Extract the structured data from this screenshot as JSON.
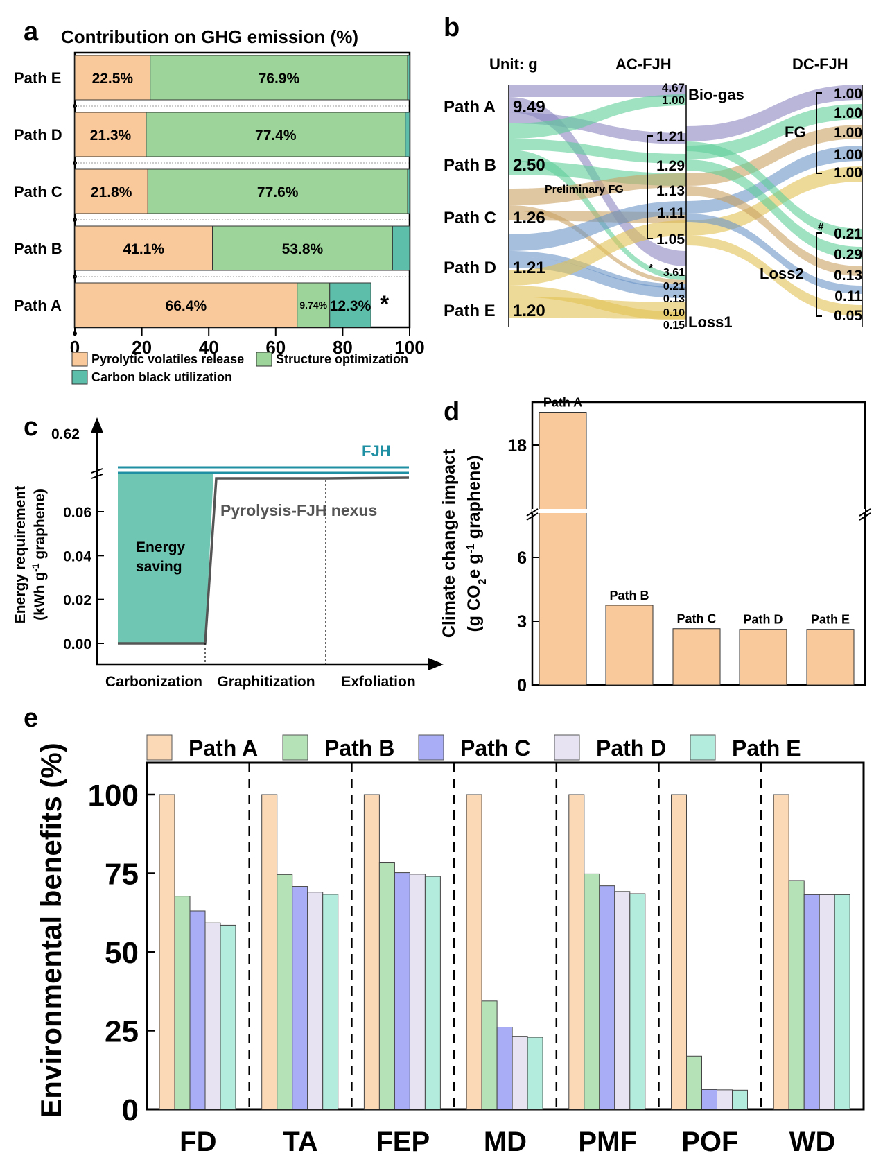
{
  "chart_data": [
    {
      "panel": "a",
      "type": "bar",
      "orientation": "horizontal",
      "stacked": true,
      "title": "Contribution on GHG emission (%)",
      "categories": [
        "Path E",
        "Path D",
        "Path C",
        "Path B",
        "Path A"
      ],
      "series": [
        {
          "name": "Pyrolytic volatiles release",
          "color": "#f9c89b",
          "values": [
            22.5,
            21.3,
            21.8,
            41.1,
            66.4
          ],
          "labels": [
            "22.5%",
            "21.3%",
            "21.8%",
            "41.1%",
            "66.4%"
          ]
        },
        {
          "name": "Structure optimization",
          "color": "#9dd49a",
          "values": [
            76.9,
            77.4,
            77.6,
            53.8,
            9.74
          ],
          "labels": [
            "76.9%",
            "77.4%",
            "77.6%",
            "53.8%",
            "9.74%"
          ]
        },
        {
          "name": "Carbon black utilization",
          "color": "#5dbfaa",
          "values": [
            0.6,
            1.3,
            0.6,
            5.1,
            12.3
          ],
          "labels": [
            "",
            "",
            "",
            "",
            "12.3%"
          ]
        }
      ],
      "xlim": [
        0,
        100
      ],
      "xticks": [
        "0",
        "20",
        "40",
        "60",
        "80",
        "100"
      ],
      "annotation": "*"
    },
    {
      "panel": "b",
      "type": "sankey",
      "unit_label": "Unit: g",
      "columns": [
        "AC-FJH",
        "DC-FJH"
      ],
      "sources": [
        {
          "name": "Path A",
          "value": "9.49",
          "color": "#8b86bf"
        },
        {
          "name": "Path B",
          "value": "2.50",
          "color": "#5fcf99"
        },
        {
          "name": "Path C",
          "value": "1.26",
          "color": "#c9a264"
        },
        {
          "name": "Path D",
          "value": "1.21",
          "color": "#6a95c6"
        },
        {
          "name": "Path E",
          "value": "1.20",
          "color": "#e3c154"
        }
      ],
      "ac_biogas": [
        "4.67",
        "1.00"
      ],
      "ac_fg": [
        "1.21",
        "1.29",
        "1.13",
        "1.11",
        "1.05"
      ],
      "ac_loss": [
        "3.61",
        "0.21",
        "0.13",
        "0.10",
        "0.15"
      ],
      "dc_fg": [
        "1.00",
        "1.00",
        "1.00",
        "1.00",
        "1.00"
      ],
      "dc_loss": [
        "0.21",
        "0.29",
        "0.13",
        "0.11",
        "0.05"
      ],
      "node_labels": {
        "biogas": "Bio-gas",
        "prelim_fg": "Preliminary FG",
        "loss1": "Loss1",
        "fg": "FG",
        "loss2": "Loss2"
      },
      "marks": {
        "star": "*",
        "hash": "#"
      }
    },
    {
      "panel": "c",
      "type": "line",
      "ylabel_lines": [
        "Energy requirement",
        "(kWh g",
        "-1",
        " graphene)"
      ],
      "y_break_label": "0.62",
      "yticks": [
        "0.00",
        "0.02",
        "0.04",
        "0.06"
      ],
      "stages": [
        "Carbonization",
        "Graphitization",
        "Exfoliation"
      ],
      "series": [
        {
          "name": "FJH",
          "color": "#1f8fa3",
          "value": 0.62
        },
        {
          "name": "Pyrolysis-FJH nexus",
          "color": "#555555",
          "values": [
            0.0,
            0.0,
            0.075,
            0.075,
            0.076
          ]
        }
      ],
      "area_label_lines": [
        "Energy",
        "saving"
      ]
    },
    {
      "panel": "d",
      "type": "bar",
      "ylabel_lines": [
        "Climate change impact",
        "(g CO",
        "2",
        "e g",
        "-1",
        " graphene)"
      ],
      "categories": [
        "Path A",
        "Path B",
        "Path C",
        "Path D",
        "Path E"
      ],
      "values": [
        18.6,
        3.75,
        2.65,
        2.62,
        2.62
      ],
      "color": "#f9c89b",
      "yticks": [
        "0",
        "3",
        "6",
        "18"
      ],
      "y_break": [
        7.5,
        16.8
      ]
    },
    {
      "panel": "e",
      "type": "bar",
      "ylabel": "Environmental benefits (%)",
      "categories": [
        "FD",
        "TA",
        "FEP",
        "MD",
        "PMF",
        "POF",
        "WD"
      ],
      "series": [
        {
          "name": "Path A",
          "color": "#fbd8b6",
          "values": [
            100,
            100,
            100,
            100,
            100,
            100,
            100
          ]
        },
        {
          "name": "Path B",
          "color": "#b6e2b8",
          "values": [
            67.7,
            74.6,
            78.3,
            34.4,
            74.8,
            16.9,
            72.7
          ]
        },
        {
          "name": "Path C",
          "color": "#a9adf5",
          "values": [
            63.0,
            70.8,
            75.2,
            26.1,
            71.0,
            6.3,
            68.2
          ]
        },
        {
          "name": "Path D",
          "color": "#e7e3f2",
          "values": [
            59.2,
            69.0,
            74.7,
            23.2,
            69.2,
            6.2,
            68.2
          ]
        },
        {
          "name": "Path E",
          "color": "#b3ecdc",
          "values": [
            58.5,
            68.3,
            74.0,
            22.9,
            68.5,
            6.1,
            68.2
          ]
        }
      ],
      "ylim": [
        0,
        110
      ],
      "yticks": [
        "0",
        "25",
        "50",
        "75",
        "100"
      ]
    }
  ],
  "panel_letters": [
    "a",
    "b",
    "c",
    "d",
    "e"
  ]
}
